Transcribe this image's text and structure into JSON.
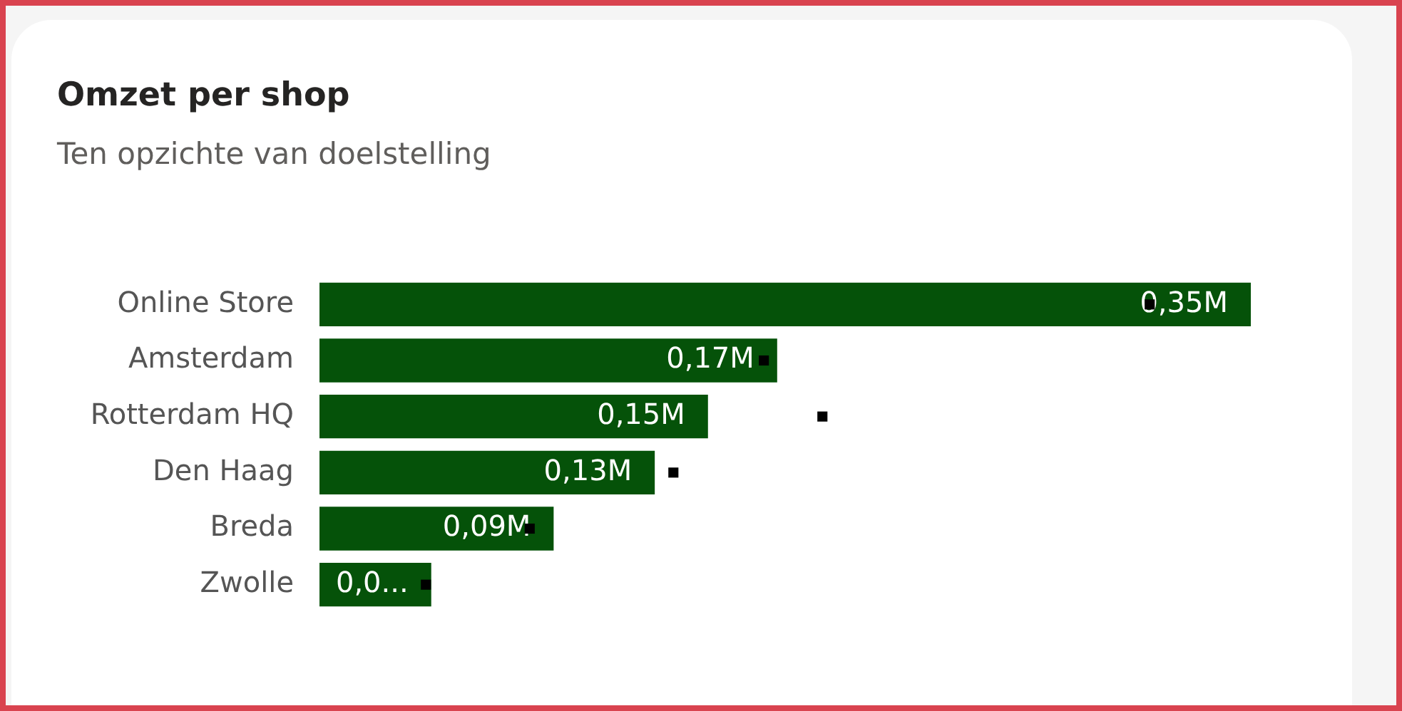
{
  "chart_data": {
    "type": "bar",
    "orientation": "horizontal",
    "title": "Omzet per shop",
    "subtitle": "Ten opzichte van doelstelling",
    "categories": [
      "Online Store",
      "Amsterdam",
      "Rotterdam HQ",
      "Den Haag",
      "Breda",
      "Zwolle"
    ],
    "series": [
      {
        "color": "#055209",
        "values": [
          0.35,
          0.172,
          0.146,
          0.126,
          0.088,
          0.042
        ],
        "value_labels": [
          "0,35M",
          "0,17M",
          "0,15M",
          "0,13M",
          "0,09M",
          "0,0..."
        ]
      },
      {
        "type": "scatter",
        "marker": "square",
        "color": "#000000",
        "x": [
          "Online Store",
          "Amsterdam",
          "Rotterdam HQ",
          "Den Haag",
          "Breda",
          "Zwolle"
        ],
        "values": [
          0.312,
          0.167,
          0.189,
          0.133,
          0.079,
          0.04
        ]
      }
    ],
    "tick_labels": "y",
    "grid": false,
    "legend": false
  }
}
